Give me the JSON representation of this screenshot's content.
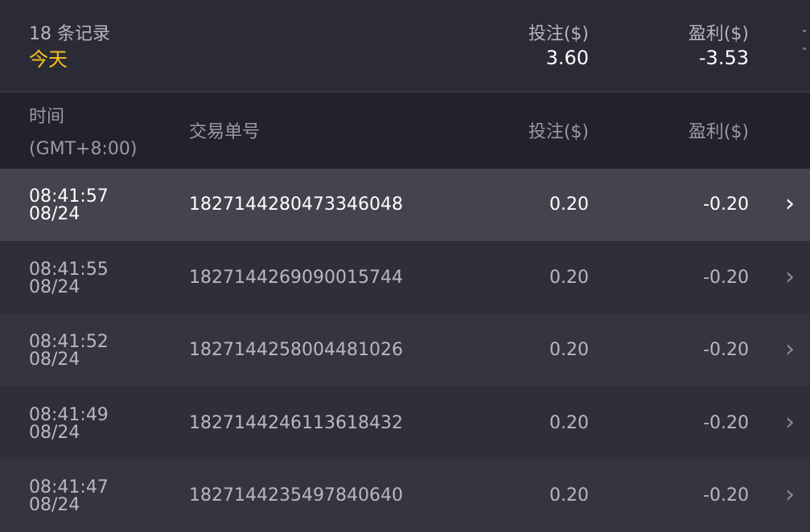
{
  "summary": {
    "count_label": "18 条记录",
    "date_filter": "今天",
    "bet_label": "投注($)",
    "bet_total": "3.60",
    "profit_label": "盈利($)",
    "profit_total": "-3.53",
    "toggle_icon": "chevron-up-down-icon"
  },
  "table": {
    "headers": {
      "time": "时间",
      "timezone": "(GMT+8:00)",
      "order_id": "交易单号",
      "bet": "投注($)",
      "profit": "盈利($)"
    },
    "rows": [
      {
        "time": "08:41:57",
        "date": "08/24",
        "order_id": "1827144280473346048",
        "bet": "0.20",
        "profit": "-0.20",
        "selected": true
      },
      {
        "time": "08:41:55",
        "date": "08/24",
        "order_id": "1827144269090015744",
        "bet": "0.20",
        "profit": "-0.20"
      },
      {
        "time": "08:41:52",
        "date": "08/24",
        "order_id": "1827144258004481026",
        "bet": "0.20",
        "profit": "-0.20"
      },
      {
        "time": "08:41:49",
        "date": "08/24",
        "order_id": "1827144246113618432",
        "bet": "0.20",
        "profit": "-0.20"
      },
      {
        "time": "08:41:47",
        "date": "08/24",
        "order_id": "1827144235497840640",
        "bet": "0.20",
        "profit": "-0.20"
      }
    ]
  },
  "colors": {
    "accent": "#f7c21b",
    "selected_row": "#44444f",
    "row_a": "#2f2f3b",
    "row_b": "#353541",
    "header_bg": "#22222c"
  }
}
